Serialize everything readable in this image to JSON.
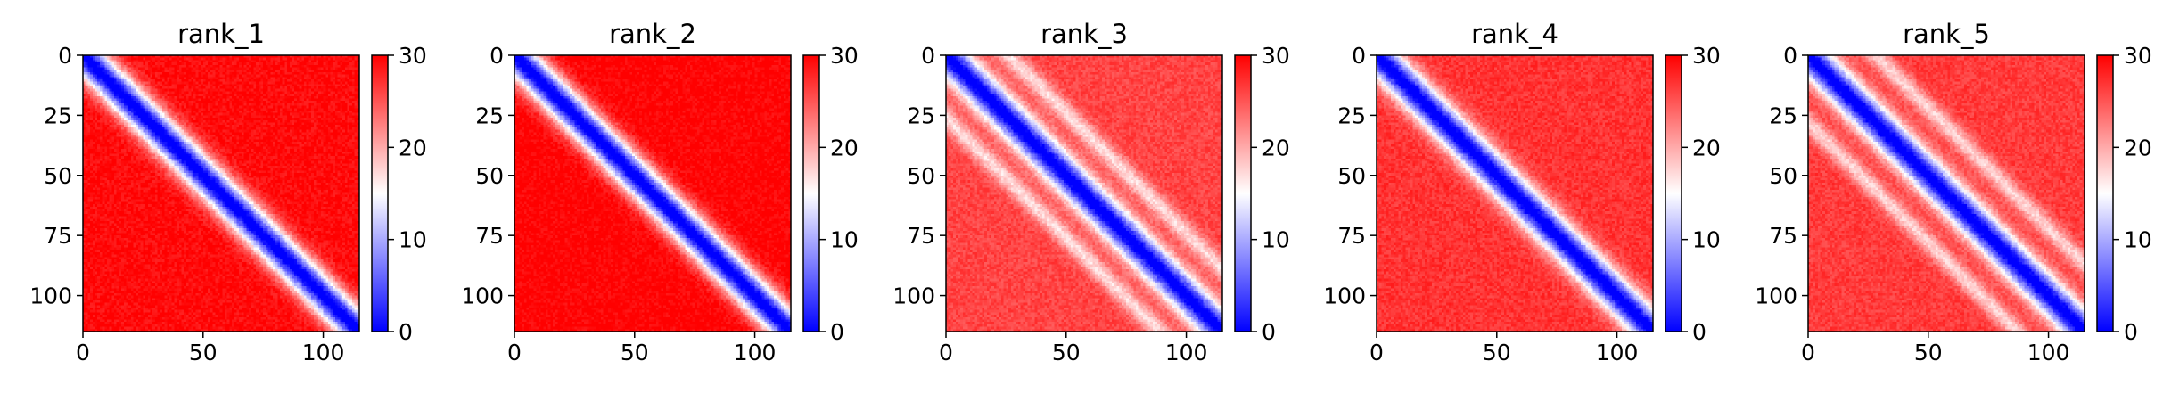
{
  "chart_data": [
    {
      "type": "heatmap",
      "title": "rank_1",
      "matrix_size": 115,
      "x_ticks": [
        0,
        50,
        100
      ],
      "y_ticks": [
        0,
        25,
        50,
        75,
        100
      ],
      "xlim": [
        0,
        115
      ],
      "ylim": [
        115,
        0
      ],
      "colorbar": {
        "min": 0,
        "max": 30,
        "ticks": [
          0,
          10,
          20,
          30
        ],
        "colormap": "bwr"
      },
      "pattern": {
        "diagonal_band_width": 7,
        "secondary_band_offset": null,
        "off_diagonal_value": 29.5
      }
    },
    {
      "type": "heatmap",
      "title": "rank_2",
      "matrix_size": 115,
      "x_ticks": [
        0,
        50,
        100
      ],
      "y_ticks": [
        0,
        25,
        50,
        75,
        100
      ],
      "xlim": [
        0,
        115
      ],
      "ylim": [
        115,
        0
      ],
      "colorbar": {
        "min": 0,
        "max": 30,
        "ticks": [
          0,
          10,
          20,
          30
        ],
        "colormap": "bwr"
      },
      "pattern": {
        "diagonal_band_width": 7,
        "secondary_band_offset": null,
        "off_diagonal_value": 30
      }
    },
    {
      "type": "heatmap",
      "title": "rank_3",
      "matrix_size": 115,
      "x_ticks": [
        0,
        50,
        100
      ],
      "y_ticks": [
        0,
        25,
        50,
        75,
        100
      ],
      "xlim": [
        0,
        115
      ],
      "ylim": [
        115,
        0
      ],
      "colorbar": {
        "min": 0,
        "max": 30,
        "ticks": [
          0,
          10,
          20,
          30
        ],
        "colormap": "bwr"
      },
      "pattern": {
        "diagonal_band_width": 7,
        "secondary_band_offset": 26,
        "off_diagonal_value": 26
      }
    },
    {
      "type": "heatmap",
      "title": "rank_4",
      "matrix_size": 115,
      "x_ticks": [
        0,
        50,
        100
      ],
      "y_ticks": [
        0,
        25,
        50,
        75,
        100
      ],
      "xlim": [
        0,
        115
      ],
      "ylim": [
        115,
        0
      ],
      "colorbar": {
        "min": 0,
        "max": 30,
        "ticks": [
          0,
          10,
          20,
          30
        ],
        "colormap": "bwr"
      },
      "pattern": {
        "diagonal_band_width": 7,
        "secondary_band_offset": null,
        "off_diagonal_value": 27
      }
    },
    {
      "type": "heatmap",
      "title": "rank_5",
      "matrix_size": 115,
      "x_ticks": [
        0,
        50,
        100
      ],
      "y_ticks": [
        0,
        25,
        50,
        75,
        100
      ],
      "xlim": [
        0,
        115
      ],
      "ylim": [
        115,
        0
      ],
      "colorbar": {
        "min": 0,
        "max": 30,
        "ticks": [
          0,
          10,
          20,
          30
        ],
        "colormap": "bwr"
      },
      "pattern": {
        "diagonal_band_width": 7,
        "secondary_band_offset": 28,
        "off_diagonal_value": 26.5
      }
    }
  ]
}
